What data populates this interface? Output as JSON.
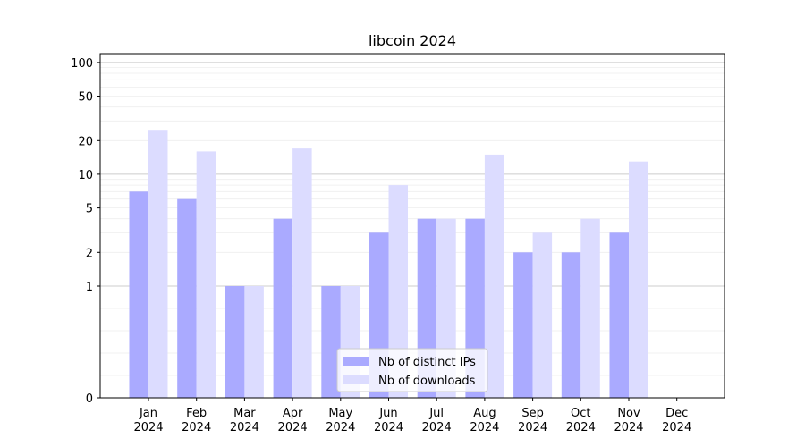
{
  "chart_data": {
    "type": "bar",
    "title": "libcoin 2024",
    "xlabel": "",
    "ylabel": "",
    "yscale": "symlog",
    "ylim": [
      0,
      120
    ],
    "ytick_labels": [
      "0",
      "1",
      "2",
      "5",
      "10",
      "20",
      "50",
      "100"
    ],
    "yticks": [
      0,
      1,
      2,
      5,
      10,
      20,
      50,
      100
    ],
    "categories": [
      "Jan\n2024",
      "Feb\n2024",
      "Mar\n2024",
      "Apr\n2024",
      "May\n2024",
      "Jun\n2024",
      "Jul\n2024",
      "Aug\n2024",
      "Sep\n2024",
      "Oct\n2024",
      "Nov\n2024",
      "Dec\n2024"
    ],
    "series": [
      {
        "name": "Nb of distinct IPs",
        "color": "#aaaaff",
        "values": [
          7,
          6,
          1,
          4,
          1,
          3,
          4,
          4,
          2,
          2,
          3,
          0
        ]
      },
      {
        "name": "Nb of downloads",
        "color": "#dcdcff",
        "values": [
          25,
          16,
          1,
          17,
          1,
          8,
          4,
          15,
          3,
          4,
          13,
          0
        ]
      }
    ],
    "legend": "lower center",
    "grid": true
  }
}
